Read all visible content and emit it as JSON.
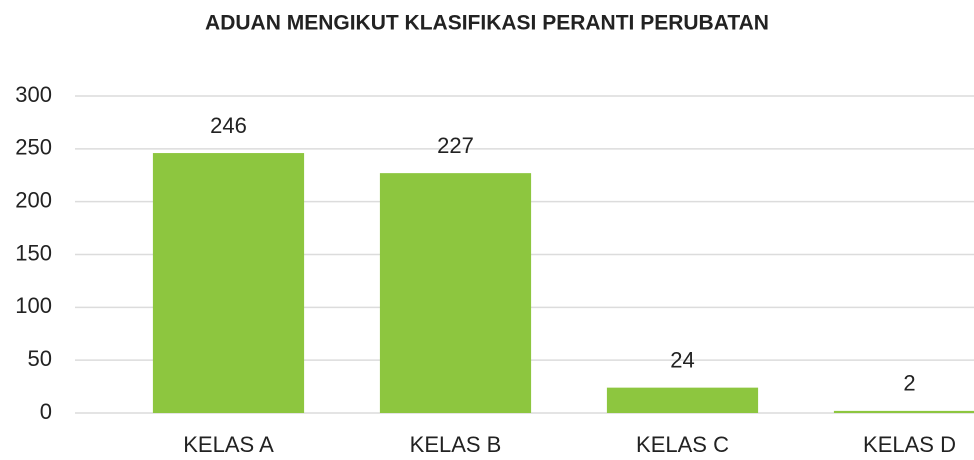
{
  "chart_data": {
    "type": "bar",
    "title": "ADUAN MENGIKUT KLASIFIKASI PERANTI PERUBATAN",
    "categories": [
      "KELAS A",
      "KELAS B",
      "KELAS C",
      "KELAS D"
    ],
    "values": [
      246,
      227,
      24,
      2
    ],
    "color": "#8dc63f",
    "ylim": [
      0,
      300
    ],
    "yticks": [
      0,
      50,
      100,
      150,
      200,
      250,
      300
    ],
    "grid": true
  }
}
